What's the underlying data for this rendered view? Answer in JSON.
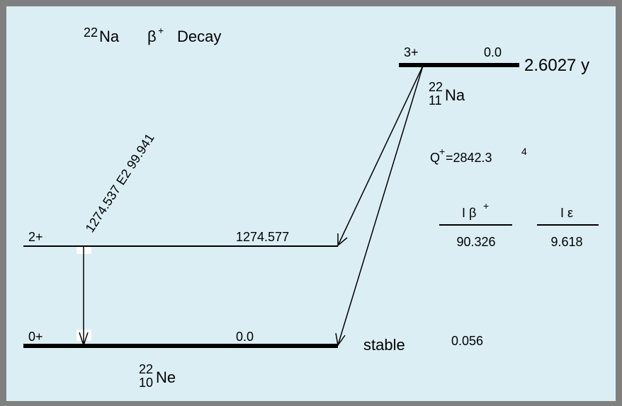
{
  "title": {
    "mass": "22",
    "element": "Na",
    "particle": "β",
    "charge": "+",
    "word": "Decay"
  },
  "parent": {
    "spin": "3+",
    "energy": "0.0",
    "half_life": "2.6027 y",
    "mass": "22",
    "atomic": "11",
    "element": "Na"
  },
  "q_value": {
    "label": "Q",
    "sign": "+",
    "value": "=2842.3",
    "uncertainty": "4"
  },
  "columns": {
    "beta": {
      "symbol": "I β",
      "charge": "+"
    },
    "ec": "I ε"
  },
  "levels": [
    {
      "spin": "2+",
      "energy": "1274.577",
      "beta": "90.326",
      "ec": "9.618"
    },
    {
      "spin": "0+",
      "energy": "0.0",
      "half_life": "stable",
      "beta": "0.056"
    }
  ],
  "gamma": {
    "label": "1274.537 E2 99.941"
  },
  "daughter": {
    "mass": "22",
    "atomic": "10",
    "element": "Ne"
  }
}
